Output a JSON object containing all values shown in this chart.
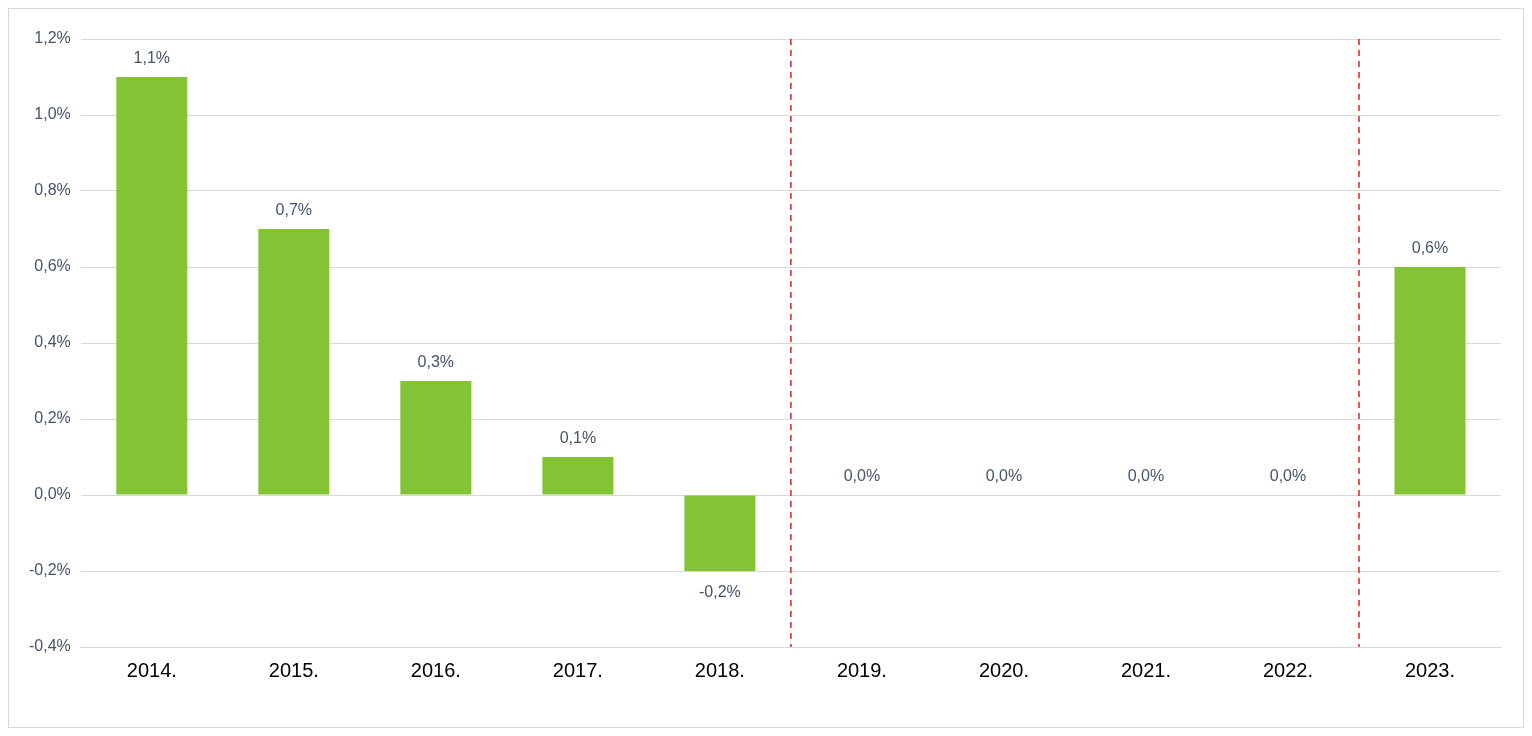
{
  "chart_data": {
    "type": "bar",
    "categories": [
      "2014.",
      "2015.",
      "2016.",
      "2017.",
      "2018.",
      "2019.",
      "2020.",
      "2021.",
      "2022.",
      "2023."
    ],
    "values": [
      1.1,
      0.7,
      0.3,
      0.1,
      -0.2,
      0,
      0,
      0,
      0,
      0.6
    ],
    "value_labels": [
      "1,1%",
      "0,7%",
      "0,3%",
      "0,1%",
      "-0,2%",
      "0,0%",
      "0,0%",
      "0,0%",
      "0,0%",
      "0,6%"
    ],
    "color": "#82c434",
    "ylim": [
      -0.4,
      1.2
    ],
    "yticks": [
      {
        "value": -0.4,
        "label": "-0,4%"
      },
      {
        "value": -0.2,
        "label": "-0,2%"
      },
      {
        "value": 0,
        "label": "0,0%"
      },
      {
        "value": 0.2,
        "label": "0,2%"
      },
      {
        "value": 0.4,
        "label": "0,4%"
      },
      {
        "value": 0.6,
        "label": "0,6%"
      },
      {
        "value": 0.8,
        "label": "0,8%"
      },
      {
        "value": 1.0,
        "label": "1,0%"
      },
      {
        "value": 1.2,
        "label": "1,2%"
      }
    ],
    "grid": "y"
  }
}
